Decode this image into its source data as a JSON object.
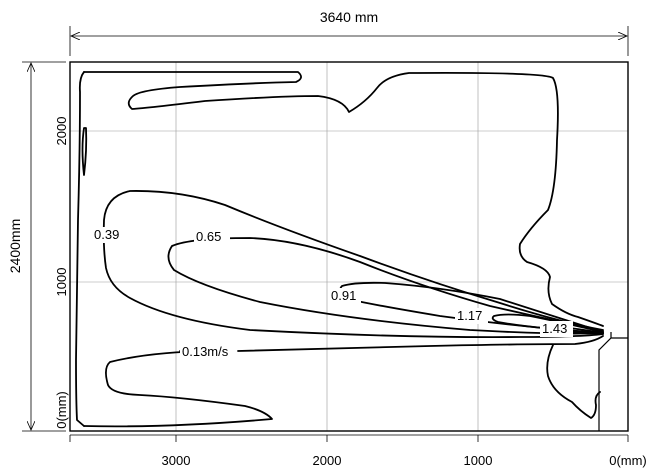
{
  "dimensions": {
    "width_label": "3640 mm",
    "height_label": "2400mm"
  },
  "x_ticks": [
    "3000",
    "2000",
    "1000",
    "0(mm)"
  ],
  "y_ticks": [
    "2000",
    "1000",
    "0(mm)"
  ],
  "contour_labels": [
    "0.39",
    "0.65",
    "0.91",
    "1.17",
    "1.43",
    "0.13m/s"
  ],
  "colors": {
    "line": "#000000",
    "grid": "#999999",
    "background": "#ffffff"
  }
}
